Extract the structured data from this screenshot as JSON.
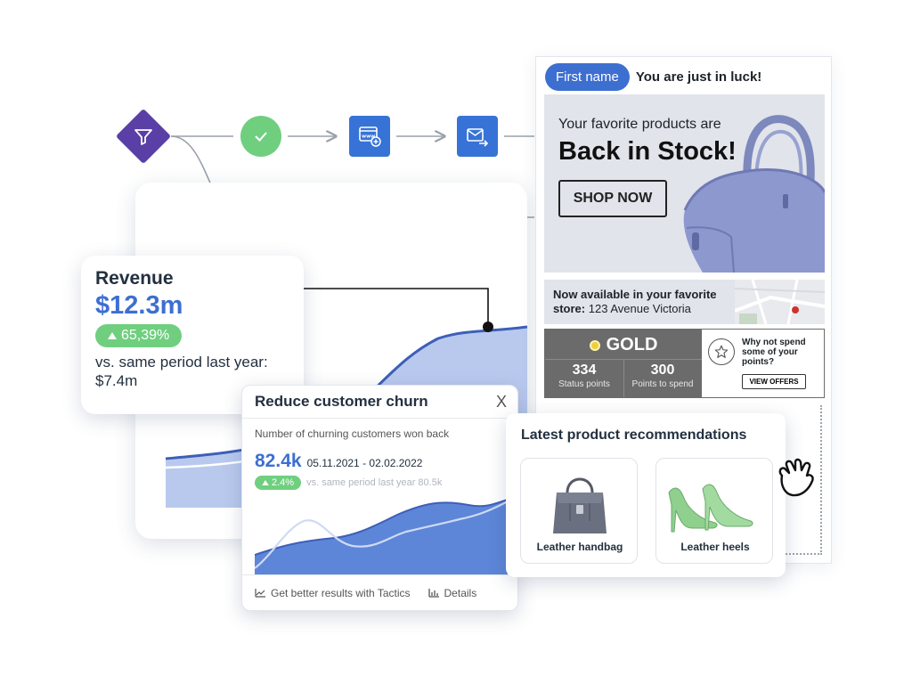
{
  "colors": {
    "primary": "#3d6fd1",
    "success": "#6fcf7f",
    "warning": "#e4a626",
    "flow_purple": "#5a3fa6",
    "flow_blue": "#3773d6",
    "gold": "#f1cf3a",
    "gray_panel": "#6b6b6b"
  },
  "flow": {
    "nodes": [
      {
        "name": "filter-diamond",
        "icon": "filter-icon"
      },
      {
        "name": "check-node-top",
        "icon": "check-icon"
      },
      {
        "name": "web-node",
        "icon": "browser-add-icon"
      },
      {
        "name": "email-send-node",
        "icon": "mail-send-icon"
      },
      {
        "name": "cancel-node",
        "icon": "x-icon"
      },
      {
        "name": "wait-diamond",
        "icon": "clock-icon"
      },
      {
        "name": "check-node-bottom",
        "icon": "check-icon"
      }
    ]
  },
  "revenue": {
    "title": "Revenue",
    "value": "$12.3m",
    "change": "65,39%",
    "comparison": "vs. same period last year: $7.4m"
  },
  "churn": {
    "title": "Reduce customer churn",
    "close_label": "X",
    "subtitle": "Number of churning customers won back",
    "value": "82.4k",
    "date_range": "05.11.2021 - 02.02.2022",
    "change": "2.4%",
    "comparison": "vs. same period last year 80.5k",
    "footer": {
      "tactics_label": "Get better results with Tactics",
      "details_label": "Details"
    }
  },
  "email": {
    "first_name_label": "First name",
    "greeting": "You are just in luck!",
    "hero_subtitle": "Your favorite products are",
    "hero_title": "Back in Stock!",
    "cta_label": "SHOP NOW",
    "store_text_bold": "Now available in your favorite store:",
    "store_address": "123 Avenue Victoria",
    "loyalty": {
      "tier": "GOLD",
      "status_points": "334",
      "status_points_label": "Status points",
      "points_to_spend": "300",
      "points_to_spend_label": "Points to spend",
      "prompt": "Why not spend some of your points?",
      "cta_label": "VIEW OFFERS"
    }
  },
  "recommendations": {
    "title": "Latest product recommendations",
    "items": [
      {
        "name": "Leather handbag",
        "icon": "handbag-icon"
      },
      {
        "name": "Leather heels",
        "icon": "heels-icon"
      }
    ]
  }
}
